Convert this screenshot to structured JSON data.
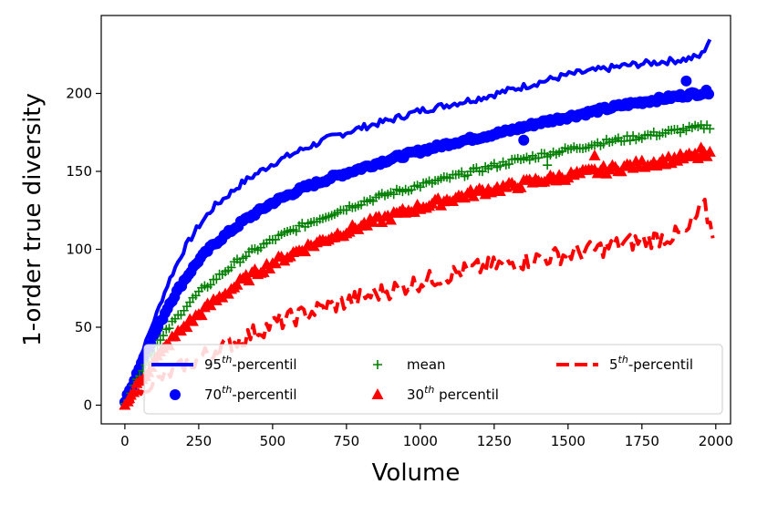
{
  "chart_data": {
    "type": "line",
    "title": "",
    "xlabel": "Volume",
    "ylabel": "1-order true diversity",
    "xlim": [
      -80,
      2050
    ],
    "ylim": [
      -12,
      250
    ],
    "xticks": [
      0,
      250,
      500,
      750,
      1000,
      1250,
      1500,
      1750,
      2000
    ],
    "yticks": [
      0,
      50,
      100,
      150,
      200
    ],
    "grid": false,
    "legend_position": "lower-left",
    "series": [
      {
        "name": "95th-percentil",
        "legend_base": "95",
        "legend_sup": "th",
        "legend_rest": "-percentil",
        "marker": "line",
        "color": "#0000ff",
        "x": [
          0,
          50,
          100,
          150,
          200,
          250,
          300,
          400,
          500,
          600,
          700,
          800,
          900,
          1000,
          1100,
          1200,
          1300,
          1400,
          1500,
          1600,
          1700,
          1800,
          1900,
          1950,
          1980
        ],
        "y": [
          2,
          30,
          55,
          80,
          100,
          115,
          127,
          143,
          155,
          164,
          172,
          178,
          183,
          189,
          193,
          197,
          202,
          207,
          212,
          215,
          218,
          220,
          222,
          224,
          235
        ]
      },
      {
        "name": "70th-percentil",
        "legend_base": "70",
        "legend_sup": "th",
        "legend_rest": "-percentil",
        "marker": "circle",
        "color": "#0000ff",
        "x": [
          0,
          50,
          100,
          150,
          200,
          250,
          300,
          400,
          500,
          600,
          700,
          800,
          900,
          1000,
          1100,
          1200,
          1300,
          1400,
          1500,
          1600,
          1700,
          1800,
          1900,
          1980
        ],
        "y": [
          2,
          25,
          45,
          65,
          80,
          93,
          103,
          118,
          130,
          139,
          146,
          152,
          158,
          163,
          168,
          172,
          176,
          181,
          185,
          189,
          193,
          196,
          199,
          201
        ]
      },
      {
        "name": "mean",
        "legend_base": "mean",
        "legend_sup": "",
        "legend_rest": "",
        "marker": "plus",
        "color": "#008000",
        "x": [
          0,
          50,
          100,
          150,
          200,
          250,
          300,
          400,
          500,
          600,
          700,
          800,
          900,
          1000,
          1100,
          1200,
          1300,
          1400,
          1500,
          1600,
          1700,
          1800,
          1900,
          1980
        ],
        "y": [
          1,
          20,
          35,
          50,
          62,
          72,
          80,
          95,
          106,
          115,
          123,
          130,
          136,
          141,
          146,
          151,
          156,
          160,
          164,
          168,
          171,
          174,
          177,
          179
        ]
      },
      {
        "name": "30th percentil",
        "legend_base": "30",
        "legend_sup": "th",
        "legend_rest": " percentil",
        "marker": "triangle",
        "color": "#ff0000",
        "x": [
          0,
          50,
          100,
          150,
          200,
          250,
          300,
          400,
          500,
          600,
          700,
          800,
          900,
          1000,
          1100,
          1200,
          1300,
          1400,
          1500,
          1600,
          1700,
          1800,
          1900,
          1980
        ],
        "y": [
          0,
          15,
          28,
          40,
          50,
          58,
          66,
          80,
          91,
          100,
          108,
          115,
          121,
          127,
          132,
          137,
          140,
          144,
          147,
          150,
          153,
          156,
          159,
          160
        ]
      },
      {
        "name": "5th-percentil",
        "legend_base": "5",
        "legend_sup": "th",
        "legend_rest": "-percentil",
        "marker": "dashed",
        "color": "#ff0000",
        "x": [
          0,
          50,
          100,
          150,
          200,
          250,
          300,
          400,
          500,
          600,
          700,
          800,
          900,
          1000,
          1100,
          1200,
          1300,
          1400,
          1500,
          1600,
          1700,
          1800,
          1900,
          1960,
          1990
        ],
        "y": [
          0,
          8,
          15,
          20,
          25,
          30,
          35,
          43,
          52,
          58,
          64,
          69,
          74,
          79,
          84,
          88,
          91,
          94,
          97,
          100,
          104,
          107,
          110,
          128,
          110
        ]
      }
    ]
  }
}
